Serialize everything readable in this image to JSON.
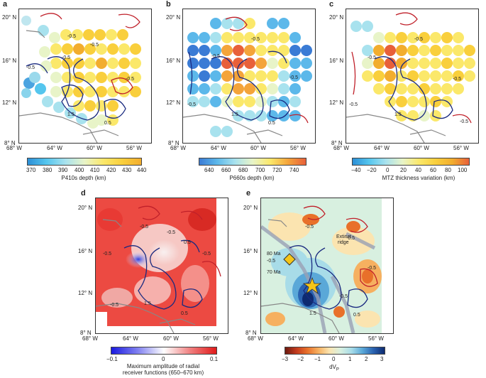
{
  "panels": [
    {
      "label": "a",
      "lat_labels": [
        "20° N",
        "16° N",
        "12° N",
        "8° N"
      ],
      "lon_labels": [
        "68° W",
        "64° W",
        "60° W",
        "56° W"
      ],
      "contours": [
        "-0.5",
        "-0.5",
        "-0.5",
        "-0.5",
        "-0.5",
        "1.5",
        "0.5"
      ],
      "colorbar": {
        "ticks": [
          "370",
          "380",
          "390",
          "400",
          "410",
          "420",
          "430",
          "440"
        ],
        "title": "P410s depth (km)",
        "colors": [
          "#2c8fd6",
          "#55c6ee",
          "#a8e2ee",
          "#e8f4c8",
          "#fbe86a",
          "#f9cf3c",
          "#f2ad2e"
        ]
      }
    },
    {
      "label": "b",
      "lat_labels": [
        "20° N",
        "16° N",
        "12° N",
        "8° N"
      ],
      "lon_labels": [
        "68° W",
        "64° W",
        "60° W",
        "56° W"
      ],
      "contours": [
        "-0.5",
        "-0.5",
        "-0.5",
        "1.5",
        "-0.5",
        "0.5"
      ],
      "colorbar": {
        "ticks": [
          "640",
          "660",
          "680",
          "700",
          "720",
          "740"
        ],
        "title": "P660s depth (km)",
        "colors": [
          "#3a7bd5",
          "#5cb8ea",
          "#a8e2ee",
          "#e8f4c8",
          "#fbe86a",
          "#f4a43a",
          "#e8603a"
        ]
      }
    },
    {
      "label": "c",
      "lat_labels": [
        "20° N",
        "16° N",
        "12° N",
        "8° N"
      ],
      "lon_labels": [
        "68° W",
        "64° W",
        "60° W",
        "56° W"
      ],
      "contours": [
        "-0.5",
        "-0.5",
        "-0.5",
        "1.5",
        "-0.5",
        "-0.5"
      ],
      "colorbar": {
        "ticks": [
          "−40",
          "−20",
          "0",
          "20",
          "40",
          "60",
          "80",
          "100"
        ],
        "title": "MTZ thickness variation (km)",
        "colors": [
          "#2c8fd6",
          "#55c6ee",
          "#a8e2ee",
          "#e8f4c8",
          "#fbe86a",
          "#f9cf3c",
          "#f2ad2e",
          "#e8603a"
        ]
      }
    },
    {
      "label": "d",
      "lat_labels": [
        "20° N",
        "16° N",
        "12° N",
        "8° N"
      ],
      "lon_labels": [
        "68° W",
        "64° W",
        "60° W",
        "56° W"
      ],
      "contours": [
        "-0.5",
        "-0.5",
        "-0.5",
        "0.5",
        "-0.5",
        "-0.5",
        "1.5",
        "0.5"
      ],
      "colorbar": {
        "ticks": [
          "−0.1",
          "0",
          "0.1"
        ],
        "title": "Maximum amplitude of radial",
        "title2": "receiver functions (650–670 km)"
      }
    },
    {
      "label": "e",
      "lat_labels": [
        "20° N",
        "16° N",
        "12° N",
        "8° N"
      ],
      "lon_labels": [
        "68° W",
        "64° W",
        "60° W",
        "56° W"
      ],
      "contours": [
        "-0.5",
        "-0.5",
        "-0.5",
        "-0.5",
        "-0.5",
        "1.5",
        "0.5"
      ],
      "annotations": [
        "Extinct",
        "ridge",
        "80 Ma",
        "70 Ma"
      ],
      "colorbar": {
        "ticks": [
          "−3",
          "−2",
          "−1",
          "0",
          "1",
          "2",
          "3"
        ],
        "title": "dV",
        "title_sub": "P",
        "colors": [
          "#6b1a10",
          "#c23a1e",
          "#e8702a",
          "#f6b060",
          "#fbe4b0",
          "#d8f0e0",
          "#a8dce8",
          "#5aa8d8",
          "#2a62b0",
          "#0d2a70"
        ]
      }
    }
  ]
}
